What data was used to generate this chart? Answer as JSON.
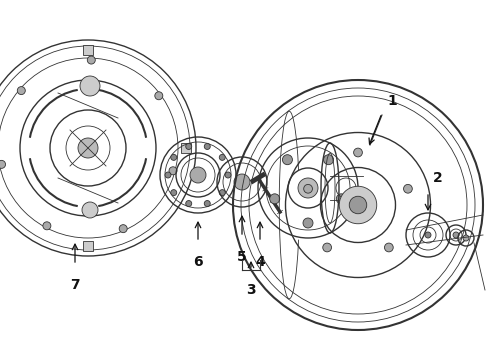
{
  "bg_color": "#ffffff",
  "line_color": "#333333",
  "label_color": "#111111",
  "fig_width": 4.9,
  "fig_height": 3.6,
  "dpi": 100
}
